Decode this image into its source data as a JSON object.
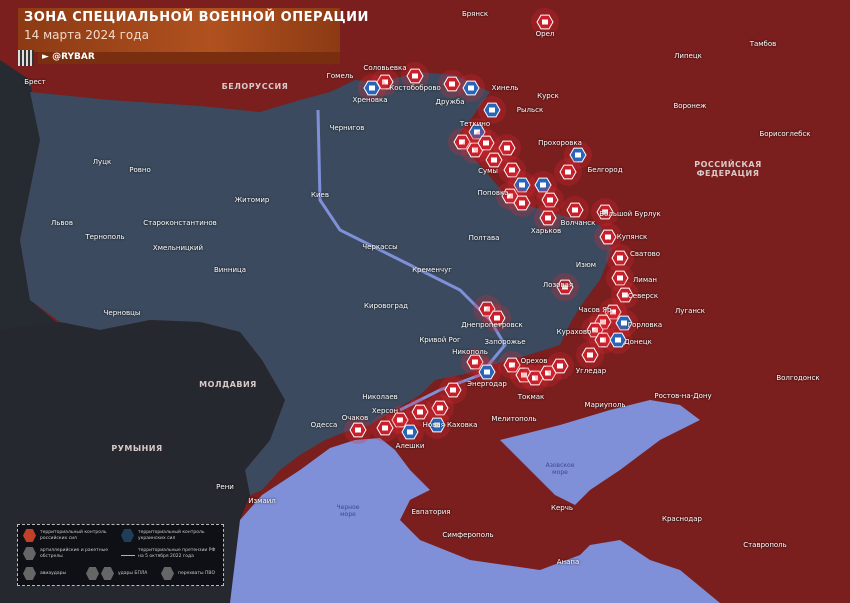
{
  "header": {
    "title": "ЗОНА СПЕЦИАЛЬНОЙ ВОЕННОЙ ОПЕРАЦИИ",
    "date": "14 марта 2024 года",
    "handle": "@RYBAR"
  },
  "countries": {
    "belarus": "БЕЛОРУССИЯ",
    "russia": "РОССИЙСКАЯ ФЕДЕРАЦИЯ",
    "moldova": "МОЛДАВИЯ",
    "romania": "РУМЫНИЯ"
  },
  "seas": {
    "azov": "Азовское море",
    "black": "Черное море"
  },
  "cities": [
    "Брянск",
    "Орел",
    "Тамбов",
    "Липецк",
    "Гомель",
    "Брест",
    "Соловьевка",
    "Хреновка",
    "Костобоброво",
    "Дружба",
    "Хинель",
    "Рыльск",
    "Курск",
    "Воронеж",
    "Борисоглебск",
    "Чернигов",
    "Теткино",
    "Прохоровка",
    "Белгород",
    "Сумы",
    "Поповка",
    "Харьков",
    "Волчанск",
    "Большой Бурлук",
    "Купянск",
    "Луцк",
    "Ровно",
    "Житомир",
    "Киев",
    "Львов",
    "Тернополь",
    "Староконстантинов",
    "Хмельницкий",
    "Винница",
    "Черкассы",
    "Полтава",
    "Кременчуг",
    "Кировоград",
    "Черновцы",
    "Изюм",
    "Сватово",
    "Лиман",
    "Лозовая",
    "Северск",
    "Часов Яр",
    "Днепропетровск",
    "Горловка",
    "Луганск",
    "Курахово",
    "Донецк",
    "Кривой Рог",
    "Запорожье",
    "Никополь",
    "Орехов",
    "Энергодар",
    "Угледар",
    "Токмак",
    "Николаев",
    "Мариуполь",
    "Ростов-на-Дону",
    "Волгодонск",
    "Очаков",
    "Херсон",
    "Одесса",
    "Новая Каховка",
    "Мелитополь",
    "Алешки",
    "Измаил",
    "Рени",
    "Евпатория",
    "Керчь",
    "Симферополь",
    "Краснодар",
    "Ставрополь",
    "Анапа"
  ],
  "legend": {
    "russian_control": "территориальный контроль российских сил",
    "ukrainian_control": "территориальный контроль украинских сил",
    "artillery": "артиллерийские и ракетные обстрелы",
    "claims": "территориальные претензии РФ на 5 октября 2022 года",
    "airstrikes": "авиаудары",
    "drones": "удары БПЛА",
    "air_defense": "перехваты ПВО"
  },
  "colors": {
    "russian": "#7a1e1e",
    "ukrainian": "#3b4a5e",
    "sea": "#7f8fd8",
    "neutral": "#2a2d33",
    "strike_red": "#c8202a",
    "strike_blue": "#2a64b8",
    "title_bar": "#a8491c"
  }
}
